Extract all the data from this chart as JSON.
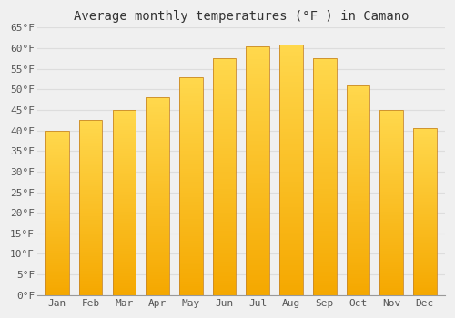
{
  "title": "Average monthly temperatures (°F ) in Camano",
  "months": [
    "Jan",
    "Feb",
    "Mar",
    "Apr",
    "May",
    "Jun",
    "Jul",
    "Aug",
    "Sep",
    "Oct",
    "Nov",
    "Dec"
  ],
  "values": [
    40,
    42.5,
    45,
    48,
    53,
    57.5,
    60.5,
    61,
    57.5,
    51,
    45,
    40.5
  ],
  "bar_color_top": "#FFD84D",
  "bar_color_bottom": "#F5A800",
  "bar_edge_color": "#C8882A",
  "ylim": [
    0,
    65
  ],
  "yticks": [
    0,
    5,
    10,
    15,
    20,
    25,
    30,
    35,
    40,
    45,
    50,
    55,
    60,
    65
  ],
  "ytick_labels": [
    "0°F",
    "5°F",
    "10°F",
    "15°F",
    "20°F",
    "25°F",
    "30°F",
    "35°F",
    "40°F",
    "45°F",
    "50°F",
    "55°F",
    "60°F",
    "65°F"
  ],
  "background_color": "#f0f0f0",
  "grid_color": "#dddddd",
  "title_fontsize": 10,
  "tick_fontsize": 8,
  "font_family": "monospace"
}
